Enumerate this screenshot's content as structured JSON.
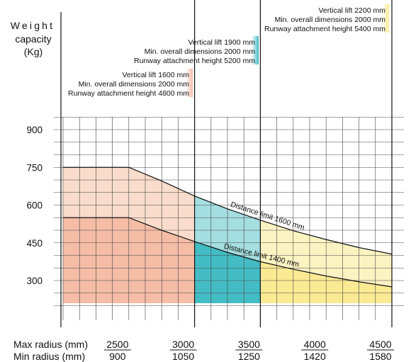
{
  "chart_data": {
    "type": "area",
    "ylabel_lines": [
      "Weight",
      "capacity",
      "(Kg)"
    ],
    "yticks": [
      300,
      450,
      600,
      750,
      900
    ],
    "x_max_radius": [
      2500,
      3000,
      3500,
      4000,
      4500
    ],
    "x_min_radius": [
      900,
      1050,
      1250,
      1420,
      1580
    ],
    "x_label_max": "Max radius (mm)",
    "x_label_min": "Min radius (mm)",
    "xlim": [
      2000,
      4500
    ],
    "ylim": [
      200,
      950
    ],
    "grid": true,
    "zones": [
      {
        "name": "Vertical lift 1600 mm",
        "x_range": [
          2000,
          3000
        ],
        "color_light": "#f9dccb",
        "color_dark": "#f5bca6",
        "spec_lines": [
          "Vertical lift  1600 mm",
          "Min. overall dimensions 2000 mm",
          "Runway attachment height 4800 mm"
        ]
      },
      {
        "name": "Vertical lift 1900 mm",
        "x_range": [
          3000,
          3500
        ],
        "color_light": "#a4dee0",
        "color_dark": "#44bcc4",
        "spec_lines": [
          "Vertical lift  1900 mm",
          "Min. overall dimensions 2000 mm",
          "Runway attachment height 5200 mm"
        ]
      },
      {
        "name": "Vertical lift 2200 mm",
        "x_range": [
          3500,
          4500
        ],
        "color_light": "#fcf3c2",
        "color_dark": "#faea94",
        "spec_lines": [
          "Vertical lift 2200 mm",
          "Min. overall dimensions 2000 mm",
          "Runway attachment height 5400 mm"
        ]
      }
    ],
    "series": [
      {
        "name": "Distance limit 1600 mm",
        "x": [
          2000,
          2500,
          2750,
          3000,
          3250,
          3500,
          3750,
          4000,
          4250,
          4500
        ],
        "y": [
          750,
          750,
          696,
          636,
          585,
          540,
          498,
          463,
          431,
          405
        ]
      },
      {
        "name": "Distance limit 1400 mm",
        "x": [
          2000,
          2500,
          2750,
          3000,
          3250,
          3500,
          3750,
          4000,
          4250,
          4500
        ],
        "y": [
          550,
          550,
          500,
          455,
          412,
          375,
          345,
          318,
          295,
          275
        ]
      }
    ],
    "baseline": 210
  }
}
